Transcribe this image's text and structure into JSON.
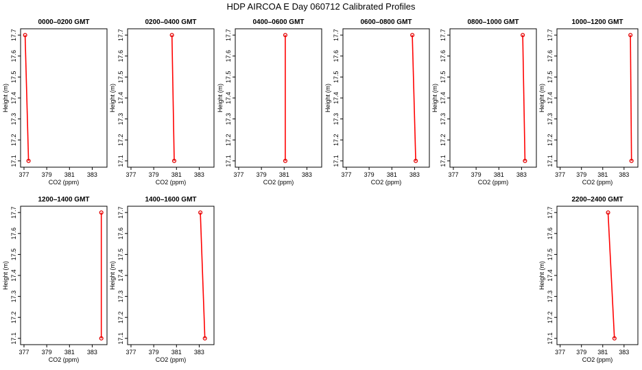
{
  "title": "HDP  AIRCOA E  Day 060712  Calibrated Profiles",
  "colors": {
    "profile": "#ff0000",
    "marker": "#e00000",
    "axis": "#000000"
  },
  "chart_data": [
    {
      "type": "line",
      "title": "0000–0200 GMT",
      "xlabel": "CO2 (ppm)",
      "ylabel": "Height (m)",
      "xlim": [
        376.7,
        384.3
      ],
      "ylim": [
        17.07,
        17.73
      ],
      "xticks": [
        377,
        379,
        381,
        383
      ],
      "yticks": [
        17.1,
        17.2,
        17.3,
        17.4,
        17.5,
        17.6,
        17.7
      ],
      "points": [
        {
          "x": 377.1,
          "y": 17.7
        },
        {
          "x": 377.4,
          "y": 17.1
        }
      ]
    },
    {
      "type": "line",
      "title": "0200–0400 GMT",
      "xlabel": "CO2 (ppm)",
      "ylabel": "Height (m)",
      "xlim": [
        376.7,
        384.3
      ],
      "ylim": [
        17.07,
        17.73
      ],
      "xticks": [
        377,
        379,
        381,
        383
      ],
      "yticks": [
        17.1,
        17.2,
        17.3,
        17.4,
        17.5,
        17.6,
        17.7
      ],
      "points": [
        {
          "x": 380.6,
          "y": 17.7
        },
        {
          "x": 380.8,
          "y": 17.1
        }
      ]
    },
    {
      "type": "line",
      "title": "0400–0600 GMT",
      "xlabel": "CO2 (ppm)",
      "ylabel": "Height (m)",
      "xlim": [
        376.7,
        384.3
      ],
      "ylim": [
        17.07,
        17.73
      ],
      "xticks": [
        377,
        379,
        381,
        383
      ],
      "yticks": [
        17.1,
        17.2,
        17.3,
        17.4,
        17.5,
        17.6,
        17.7
      ],
      "points": [
        {
          "x": 381.1,
          "y": 17.7
        },
        {
          "x": 381.1,
          "y": 17.1
        }
      ]
    },
    {
      "type": "line",
      "title": "0600–0800 GMT",
      "xlabel": "CO2 (ppm)",
      "ylabel": "Height (m)",
      "xlim": [
        376.7,
        384.3
      ],
      "ylim": [
        17.07,
        17.73
      ],
      "xticks": [
        377,
        379,
        381,
        383
      ],
      "yticks": [
        17.1,
        17.2,
        17.3,
        17.4,
        17.5,
        17.6,
        17.7
      ],
      "points": [
        {
          "x": 382.8,
          "y": 17.7
        },
        {
          "x": 383.1,
          "y": 17.1
        }
      ]
    },
    {
      "type": "line",
      "title": "0800–1000 GMT",
      "xlabel": "CO2 (ppm)",
      "ylabel": "Height (m)",
      "xlim": [
        376.7,
        384.3
      ],
      "ylim": [
        17.07,
        17.73
      ],
      "xticks": [
        377,
        379,
        381,
        383
      ],
      "yticks": [
        17.1,
        17.2,
        17.3,
        17.4,
        17.5,
        17.6,
        17.7
      ],
      "points": [
        {
          "x": 383.1,
          "y": 17.7
        },
        {
          "x": 383.3,
          "y": 17.1
        }
      ]
    },
    {
      "type": "line",
      "title": "1000–1200 GMT",
      "xlabel": "CO2 (ppm)",
      "ylabel": "Height (m)",
      "xlim": [
        376.7,
        384.3
      ],
      "ylim": [
        17.07,
        17.73
      ],
      "xticks": [
        377,
        379,
        381,
        383
      ],
      "yticks": [
        17.1,
        17.2,
        17.3,
        17.4,
        17.5,
        17.6,
        17.7
      ],
      "points": [
        {
          "x": 383.6,
          "y": 17.7
        },
        {
          "x": 383.7,
          "y": 17.1
        }
      ]
    },
    {
      "type": "line",
      "title": "1200–1400 GMT",
      "xlabel": "CO2 (ppm)",
      "ylabel": "Height (m)",
      "xlim": [
        376.7,
        384.3
      ],
      "ylim": [
        17.07,
        17.73
      ],
      "xticks": [
        377,
        379,
        381,
        383
      ],
      "yticks": [
        17.1,
        17.2,
        17.3,
        17.4,
        17.5,
        17.6,
        17.7
      ],
      "points": [
        {
          "x": 383.8,
          "y": 17.7
        },
        {
          "x": 383.8,
          "y": 17.1
        }
      ]
    },
    {
      "type": "line",
      "title": "1400–1600 GMT",
      "xlabel": "CO2 (ppm)",
      "ylabel": "Height (m)",
      "xlim": [
        376.7,
        384.3
      ],
      "ylim": [
        17.07,
        17.73
      ],
      "xticks": [
        377,
        379,
        381,
        383
      ],
      "yticks": [
        17.1,
        17.2,
        17.3,
        17.4,
        17.5,
        17.6,
        17.7
      ],
      "points": [
        {
          "x": 383.1,
          "y": 17.7
        },
        {
          "x": 383.5,
          "y": 17.1
        }
      ]
    },
    {
      "type": "line",
      "title": "2200–2400 GMT",
      "xlabel": "CO2 (ppm)",
      "ylabel": "Height (m)",
      "xlim": [
        376.7,
        384.3
      ],
      "ylim": [
        17.07,
        17.73
      ],
      "xticks": [
        377,
        379,
        381,
        383
      ],
      "yticks": [
        17.1,
        17.2,
        17.3,
        17.4,
        17.5,
        17.6,
        17.7
      ],
      "points": [
        {
          "x": 381.5,
          "y": 17.7
        },
        {
          "x": 382.1,
          "y": 17.1
        }
      ]
    }
  ]
}
